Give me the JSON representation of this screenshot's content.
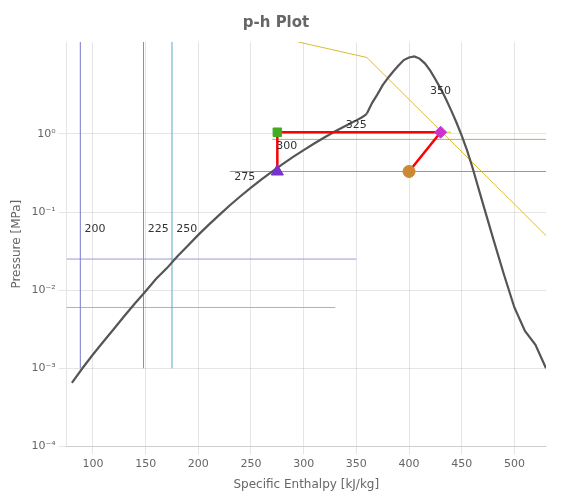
{
  "chart_data": {
    "type": "line",
    "title": "p-h Plot",
    "xlabel": "Specific Enthalpy [kJ/kg]",
    "ylabel": "Pressure [MPa]",
    "log": "y",
    "grid": true,
    "xlim": [
      75,
      530
    ],
    "ylim": [
      0.0001,
      15
    ],
    "xticks": [
      100,
      150,
      200,
      250,
      300,
      350,
      400,
      450,
      500
    ],
    "yticks": [
      {
        "value": 0.0001,
        "label": "10⁻⁴"
      },
      {
        "value": 0.001,
        "label": "10⁻³"
      },
      {
        "value": 0.01,
        "label": "10⁻²"
      },
      {
        "value": 0.1,
        "label": "10⁻¹"
      },
      {
        "value": 1,
        "label": "10⁰"
      }
    ],
    "series": [
      {
        "type": "line",
        "color": "#555555",
        "x": [
          80,
          90,
          100,
          110,
          120,
          130,
          140,
          150,
          160,
          170,
          180,
          190,
          200,
          210,
          220,
          230,
          240,
          250,
          260,
          270,
          280,
          290,
          300,
          310,
          320,
          330,
          340,
          350,
          355,
          358,
          360
        ],
        "values": [
          0.00065,
          0.001,
          0.0015,
          0.0022,
          0.0032,
          0.0047,
          0.0068,
          0.0097,
          0.014,
          0.019,
          0.027,
          0.037,
          0.051,
          0.069,
          0.092,
          0.122,
          0.159,
          0.205,
          0.261,
          0.328,
          0.41,
          0.507,
          0.62,
          0.753,
          0.905,
          1.08,
          1.27,
          1.49,
          1.62,
          1.72,
          1.82
        ]
      },
      {
        "type": "line",
        "color": "#555555",
        "x": [
          360,
          365,
          370,
          375,
          380,
          385,
          390,
          395,
          400,
          405,
          410,
          415,
          420,
          425,
          430,
          435,
          440,
          445,
          450,
          455,
          460,
          470,
          480,
          490,
          500,
          510,
          520,
          530
        ],
        "values": [
          1.82,
          2.5,
          3.2,
          4.2,
          5.2,
          6.3,
          7.5,
          8.8,
          9.5,
          9.8,
          9.2,
          8.0,
          6.5,
          5.0,
          3.8,
          2.8,
          2.0,
          1.4,
          0.95,
          0.62,
          0.38,
          0.13,
          0.045,
          0.016,
          0.006,
          0.003,
          0.002,
          0.001
        ]
      },
      {
        "type": "line",
        "color": "#7777cc",
        "x": [
          88,
          88
        ],
        "values": [
          0.001,
          15
        ]
      },
      {
        "type": "line",
        "color": "#6699cc",
        "x": [
          148,
          148
        ],
        "values": [
          0.001,
          15
        ]
      },
      {
        "type": "line",
        "color": "#55aacc",
        "x": [
          175,
          175
        ],
        "values": [
          0.001,
          15
        ]
      },
      {
        "type": "line",
        "color": "#44bbcc",
        "x": [
          230,
          530
        ],
        "values": [
          0.33,
          0.33
        ]
      },
      {
        "type": "line",
        "color": "#88cc55",
        "x": [
          270,
          530
        ],
        "values": [
          0.85,
          0.85
        ]
      },
      {
        "type": "line",
        "color": "#cccc33",
        "x": [
          275,
          440
        ],
        "values": [
          1.05,
          1.05
        ]
      },
      {
        "type": "line",
        "color": "#ddbb33",
        "x": [
          295,
          360
        ],
        "values": [
          15,
          9.5
        ]
      },
      {
        "type": "line",
        "color": "#ddbb33",
        "x": [
          360,
          530
        ],
        "values": [
          9.5,
          0.05
        ]
      },
      {
        "type": "line",
        "color": "#9999dd",
        "x": [
          75,
          350
        ],
        "values": [
          0.025,
          0.025
        ]
      },
      {
        "type": "line",
        "color": "#aaaadd",
        "x": [
          75,
          330
        ],
        "values": [
          0.006,
          0.006
        ]
      },
      {
        "type": "line",
        "color": "#ff0000",
        "x": [
          275,
          430
        ],
        "values": [
          1.05,
          1.05
        ]
      },
      {
        "type": "line",
        "color": "#ff0000",
        "x": [
          430,
          400
        ],
        "values": [
          1.05,
          0.33
        ]
      },
      {
        "type": "line",
        "color": "#ff0000",
        "x": [
          275,
          275
        ],
        "values": [
          1.05,
          0.33
        ]
      },
      {
        "type": "scatter",
        "color": "#44aa22",
        "marker": "square",
        "x": [
          275
        ],
        "values": [
          1.05
        ]
      },
      {
        "type": "scatter",
        "color": "#cc33cc",
        "marker": "diamond",
        "x": [
          430
        ],
        "values": [
          1.05
        ]
      },
      {
        "type": "scatter",
        "color": "#cc8833",
        "marker": "circle",
        "x": [
          400
        ],
        "values": [
          0.33
        ]
      },
      {
        "type": "scatter",
        "color": "#7733cc",
        "marker": "triangle",
        "x": [
          275
        ],
        "values": [
          0.33
        ]
      }
    ],
    "annotations": [
      {
        "text": "200",
        "x": 92,
        "y": 0.06
      },
      {
        "text": "225",
        "x": 152,
        "y": 0.06
      },
      {
        "text": "250",
        "x": 179,
        "y": 0.06
      },
      {
        "text": "275",
        "x": 234,
        "y": 0.28
      },
      {
        "text": "300",
        "x": 274,
        "y": 0.7
      },
      {
        "text": "325",
        "x": 340,
        "y": 1.3
      },
      {
        "text": "350",
        "x": 420,
        "y": 3.5
      }
    ]
  }
}
